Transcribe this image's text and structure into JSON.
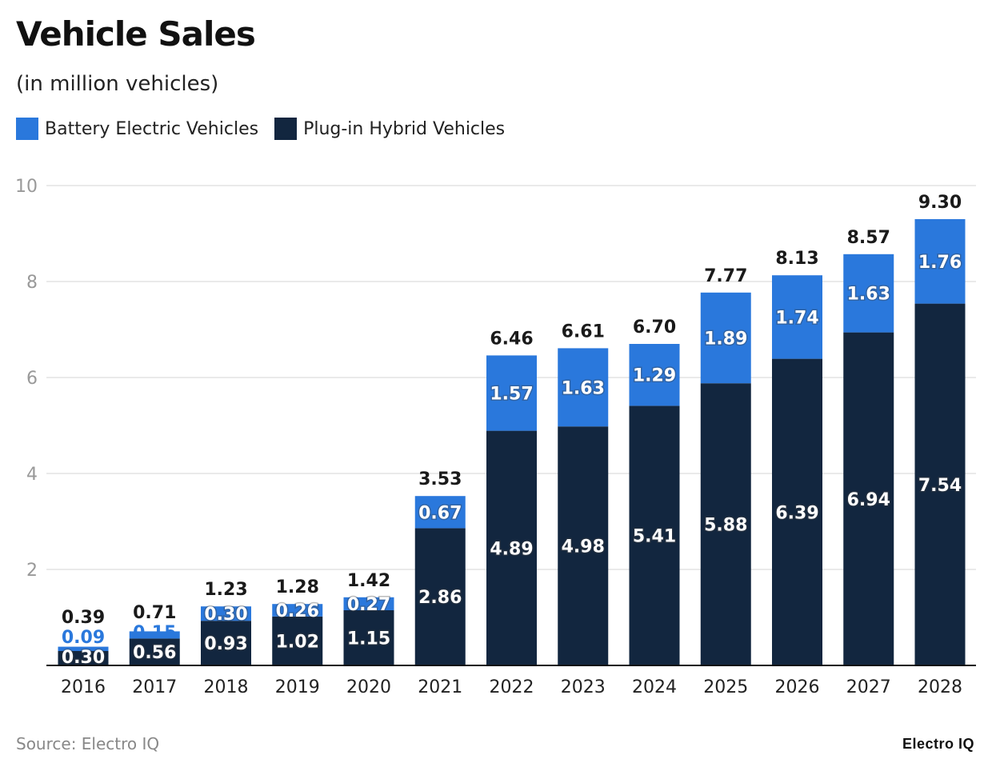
{
  "chart_data": {
    "type": "bar",
    "stacked": true,
    "title": "Vehicle Sales",
    "subtitle": "(in million vehicles)",
    "categories": [
      "2016",
      "2017",
      "2018",
      "2019",
      "2020",
      "2021",
      "2022",
      "2023",
      "2024",
      "2025",
      "2026",
      "2027",
      "2028"
    ],
    "series": [
      {
        "name": "Plug-in Hybrid Vehicles",
        "color": "#12263f",
        "values": [
          0.3,
          0.56,
          0.93,
          1.02,
          1.15,
          2.86,
          4.89,
          4.98,
          5.41,
          5.88,
          6.39,
          6.94,
          7.54
        ]
      },
      {
        "name": "Battery Electric Vehicles",
        "color": "#2a78dc",
        "values": [
          0.09,
          0.15,
          0.3,
          0.26,
          0.27,
          0.67,
          1.57,
          1.63,
          1.29,
          1.89,
          1.74,
          1.63,
          1.76
        ]
      }
    ],
    "totals": [
      "0.39",
      "0.71",
      "1.23",
      "1.28",
      "1.42",
      "3.53",
      "6.46",
      "6.61",
      "6.70",
      "7.77",
      "8.13",
      "8.57",
      "9.30"
    ],
    "legend": [
      {
        "label": "Battery Electric Vehicles",
        "color": "#2a78dc"
      },
      {
        "label": "Plug-in Hybrid Vehicles",
        "color": "#12263f"
      }
    ],
    "legend_position": "top-left",
    "yticks": [
      2,
      4,
      6,
      8,
      10
    ],
    "ylim": [
      0,
      10
    ],
    "grid": true,
    "xlabel": "",
    "ylabel": ""
  },
  "source": "Source: Electro IQ",
  "logo": "Electro IQ"
}
